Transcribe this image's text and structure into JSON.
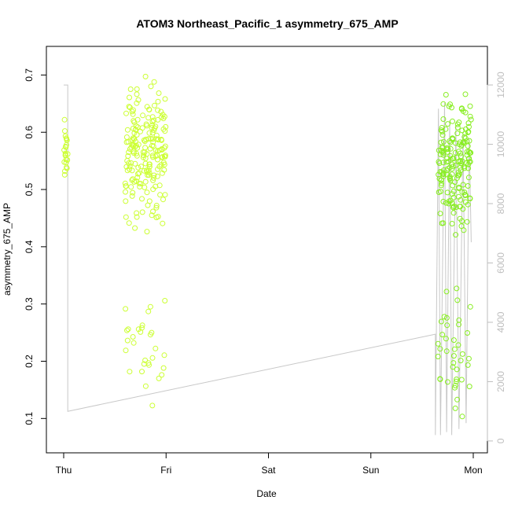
{
  "chart_data": {
    "type": "scatter",
    "title": "ATOM3 Northeast_Pacific_1 asymmetry_675_AMP",
    "xlabel": "Date",
    "ylabel": "asymmetry_675_AMP",
    "x_ticks": [
      "Thu",
      "Fri",
      "Sat",
      "Sun",
      "Mon"
    ],
    "y_ticks": [
      "0.1",
      "0.2",
      "0.3",
      "0.4",
      "0.5",
      "0.6",
      "0.7"
    ],
    "y_ticks_values": [
      0.1,
      0.2,
      0.3,
      0.4,
      0.5,
      0.6,
      0.7
    ],
    "y2_ticks": [
      "0",
      "2000",
      "4000",
      "6000",
      "8000",
      "10000",
      "12000"
    ],
    "y2_ticks_values": [
      0,
      2000,
      4000,
      6000,
      8000,
      10000,
      12000
    ],
    "xlim": [
      0,
      4
    ],
    "ylim": [
      0.04,
      0.75
    ],
    "y2lim": [
      -400,
      13300
    ],
    "x_unit": "days from Thu 00:00",
    "grid": false,
    "legend": "none",
    "colors": {
      "points_early": "#ccff33",
      "points_late": "#88ee22",
      "depth_line": "#c8c8c8",
      "axes": "#000000",
      "right_axis": "#bebebe"
    },
    "series": [
      {
        "marker": "open-circle",
        "clusters": [
          {
            "x_range": [
              0.0,
              0.04
            ],
            "y_range": [
              0.48,
              0.65
            ],
            "n": 22,
            "color": "#ccff33"
          },
          {
            "x_range": [
              0.6,
              1.0
            ],
            "y_range": [
              0.4,
              0.73
            ],
            "n": 200,
            "color": "#ccff33"
          },
          {
            "x_range": [
              0.6,
              1.0
            ],
            "y_range": [
              0.06,
              0.36
            ],
            "n": 30,
            "color": "#ccff33"
          },
          {
            "x_range": [
              3.65,
              3.98
            ],
            "y_range": [
              0.4,
              0.7
            ],
            "n": 180,
            "color": "#88ee22"
          },
          {
            "x_range": [
              3.65,
              3.98
            ],
            "y_range": [
              0.06,
              0.36
            ],
            "n": 40,
            "color": "#88ee22"
          }
        ]
      },
      {
        "axis": "right",
        "type": "line",
        "approximate_path": [
          [
            0.0,
            12000
          ],
          [
            0.04,
            12000
          ],
          [
            0.04,
            1000
          ],
          [
            3.63,
            3600
          ],
          [
            3.63,
            200
          ],
          [
            3.66,
            11200
          ],
          [
            3.68,
            200
          ],
          [
            3.72,
            11400
          ],
          [
            3.74,
            300
          ],
          [
            3.77,
            10800
          ],
          [
            3.79,
            200
          ],
          [
            3.83,
            10600
          ],
          [
            3.86,
            400
          ],
          [
            3.9,
            10400
          ],
          [
            3.93,
            600
          ],
          [
            3.96,
            10200
          ],
          [
            3.98,
            6700
          ]
        ]
      }
    ]
  }
}
